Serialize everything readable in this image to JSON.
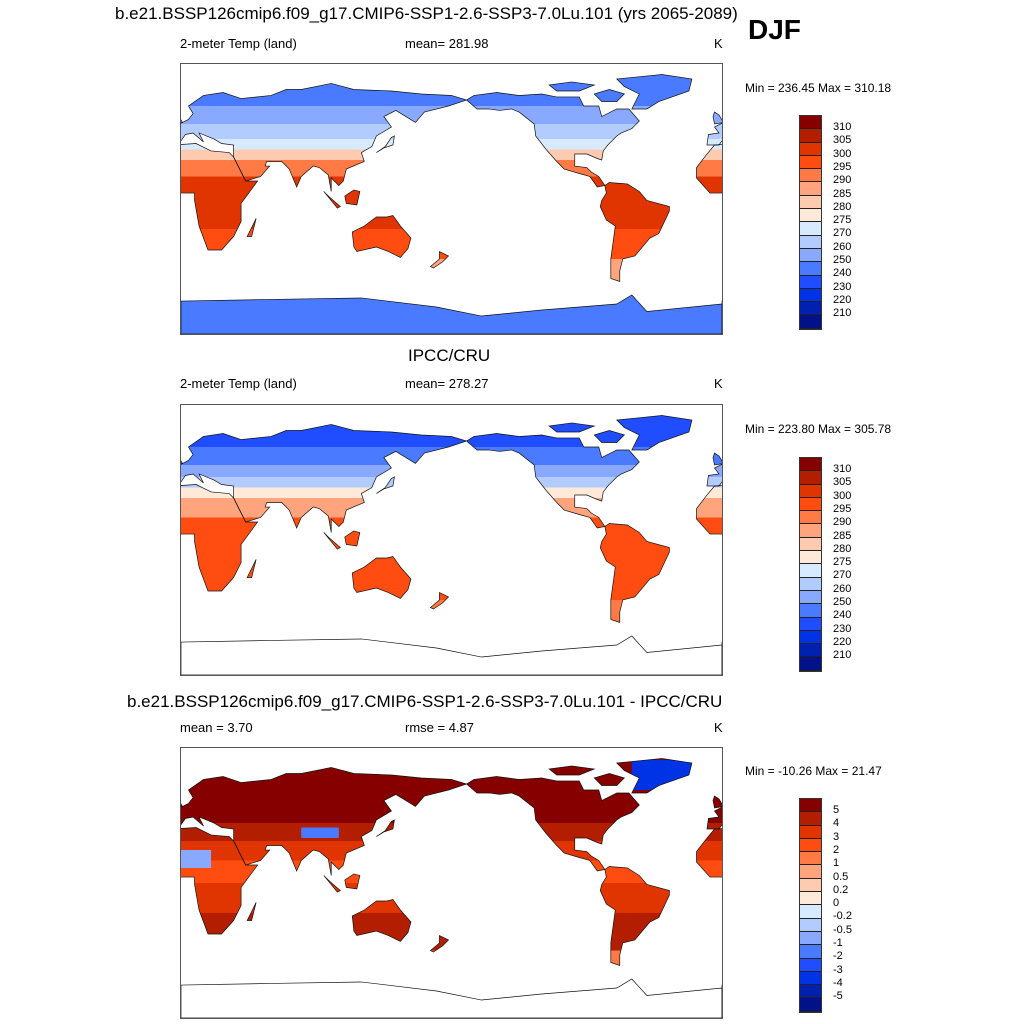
{
  "title": "b.e21.BSSP126cmip6.f09_g17.CMIP6-SSP1-2.6-SSP3-7.0Lu.101 (yrs 2065-2089)",
  "season": "DJF",
  "panels": [
    {
      "title": "",
      "left_label": "2-meter Temp (land)",
      "center_label": "mean= 281.98",
      "units": "K",
      "minmax": "Min = 236.45 Max = 310.18",
      "levels": [
        "310",
        "305",
        "300",
        "295",
        "290",
        "285",
        "280",
        "275",
        "270",
        "260",
        "250",
        "240",
        "230",
        "220",
        "210"
      ]
    },
    {
      "title": "IPCC/CRU",
      "left_label": "2-meter Temp (land)",
      "center_label": "mean= 278.27",
      "units": "K",
      "minmax": "Min = 223.80 Max = 305.78",
      "levels": [
        "310",
        "305",
        "300",
        "295",
        "290",
        "285",
        "280",
        "275",
        "270",
        "260",
        "250",
        "240",
        "230",
        "220",
        "210"
      ]
    },
    {
      "title": "b.e21.BSSP126cmip6.f09_g17.CMIP6-SSP1-2.6-SSP3-7.0Lu.101 - IPCC/CRU",
      "left_label": "mean =   3.70",
      "center_label": "rmse =   4.87",
      "units": "K",
      "minmax": "Min = -10.26 Max =  21.47",
      "levels": [
        "5",
        "4",
        "3",
        "2",
        "1",
        "0.5",
        "0.2",
        "0",
        "-0.2",
        "-0.5",
        "-1",
        "-2",
        "-3",
        "-4",
        "-5"
      ]
    }
  ],
  "colormap": [
    "#870000",
    "#b31e00",
    "#e03500",
    "#ff4d12",
    "#ff7a44",
    "#ffa47c",
    "#ffcbb0",
    "#ffe9d8",
    "#d8eaff",
    "#b3ccff",
    "#88a9ff",
    "#4a7aff",
    "#1f4dff",
    "#0033e6",
    "#0020b0",
    "#00118a"
  ]
}
